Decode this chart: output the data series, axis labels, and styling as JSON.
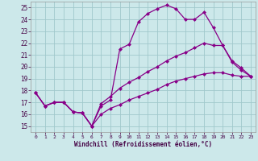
{
  "xlabel": "Windchill (Refroidissement éolien,°C)",
  "xlim": [
    -0.5,
    23.5
  ],
  "ylim": [
    14.5,
    25.5
  ],
  "xticks": [
    0,
    1,
    2,
    3,
    4,
    5,
    6,
    7,
    8,
    9,
    10,
    11,
    12,
    13,
    14,
    15,
    16,
    17,
    18,
    19,
    20,
    21,
    22,
    23
  ],
  "yticks": [
    15,
    16,
    17,
    18,
    19,
    20,
    21,
    22,
    23,
    24,
    25
  ],
  "bg_color": "#cce8ea",
  "grid_color": "#a0c8cc",
  "line_color": "#880088",
  "line1_x": [
    0,
    1,
    2,
    3,
    4,
    5,
    6,
    7,
    8,
    9,
    10,
    11,
    12,
    13,
    14,
    15,
    16,
    17,
    18,
    19,
    20,
    21,
    22,
    23
  ],
  "line1_y": [
    17.8,
    16.7,
    17.0,
    17.0,
    16.2,
    16.1,
    15.0,
    16.7,
    17.2,
    21.5,
    21.9,
    23.8,
    24.5,
    24.9,
    25.2,
    24.9,
    24.0,
    24.0,
    24.6,
    23.3,
    21.8,
    20.5,
    19.9,
    19.2
  ],
  "line2_x": [
    0,
    1,
    2,
    3,
    4,
    5,
    6,
    7,
    8,
    9,
    10,
    11,
    12,
    13,
    14,
    15,
    16,
    17,
    18,
    19,
    20,
    21,
    22,
    23
  ],
  "line2_y": [
    17.8,
    16.7,
    17.0,
    17.0,
    16.2,
    16.1,
    15.0,
    16.9,
    17.5,
    18.2,
    18.7,
    19.1,
    19.6,
    20.0,
    20.5,
    20.9,
    21.2,
    21.6,
    22.0,
    21.8,
    21.8,
    20.4,
    19.7,
    19.2
  ],
  "line3_x": [
    0,
    1,
    2,
    3,
    4,
    5,
    6,
    7,
    8,
    9,
    10,
    11,
    12,
    13,
    14,
    15,
    16,
    17,
    18,
    19,
    20,
    21,
    22,
    23
  ],
  "line3_y": [
    17.8,
    16.7,
    17.0,
    17.0,
    16.2,
    16.1,
    15.0,
    16.0,
    16.5,
    16.8,
    17.2,
    17.5,
    17.8,
    18.1,
    18.5,
    18.8,
    19.0,
    19.2,
    19.4,
    19.5,
    19.5,
    19.3,
    19.2,
    19.2
  ],
  "markersize": 2.5,
  "linewidth": 0.9
}
